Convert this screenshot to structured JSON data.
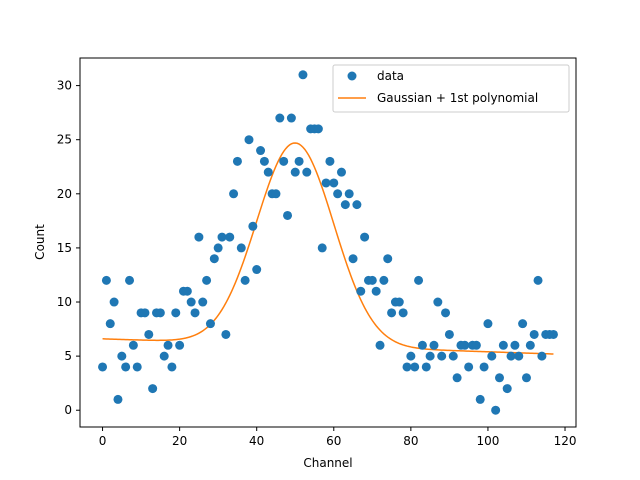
{
  "chart_data": {
    "type": "scatter",
    "xlabel": "Channel",
    "ylabel": "Count",
    "xlim": [
      -5.85,
      122.85
    ],
    "ylim": [
      -1.55,
      32.55
    ],
    "xticks": [
      0,
      20,
      40,
      60,
      80,
      100,
      120
    ],
    "yticks": [
      0,
      5,
      10,
      15,
      20,
      25,
      30
    ],
    "grid": false,
    "legend_position": "upper-right",
    "colors": {
      "data": "#1f77b4",
      "fit": "#ff7f0e"
    },
    "series": [
      {
        "name": "data",
        "kind": "scatter",
        "x": [
          0,
          1,
          2,
          3,
          4,
          5,
          6,
          7,
          8,
          9,
          10,
          11,
          12,
          13,
          14,
          15,
          16,
          17,
          18,
          19,
          20,
          21,
          22,
          23,
          24,
          25,
          26,
          27,
          28,
          29,
          30,
          31,
          32,
          33,
          34,
          35,
          36,
          37,
          38,
          39,
          40,
          41,
          42,
          43,
          44,
          45,
          46,
          47,
          48,
          49,
          50,
          51,
          52,
          53,
          54,
          55,
          56,
          57,
          58,
          59,
          60,
          61,
          62,
          63,
          64,
          65,
          66,
          67,
          68,
          69,
          70,
          71,
          72,
          73,
          74,
          75,
          76,
          77,
          78,
          79,
          80,
          81,
          82,
          83,
          84,
          85,
          86,
          87,
          88,
          89,
          90,
          91,
          92,
          93,
          94,
          95,
          96,
          97,
          98,
          99,
          100,
          101,
          102,
          103,
          104,
          105,
          106,
          107,
          108,
          109,
          110,
          111,
          112,
          113,
          114,
          115,
          116,
          117
        ],
        "y": [
          4,
          12,
          8,
          10,
          1,
          5,
          4,
          12,
          6,
          4,
          9,
          9,
          7,
          2,
          9,
          9,
          5,
          6,
          4,
          9,
          6,
          11,
          11,
          10,
          9,
          16,
          10,
          12,
          8,
          14,
          15,
          16,
          7,
          16,
          20,
          23,
          15,
          12,
          25,
          17,
          13,
          24,
          23,
          22,
          20,
          20,
          27,
          23,
          18,
          27,
          22,
          23,
          31,
          22,
          26,
          26,
          26,
          15,
          21,
          23,
          21,
          20,
          22,
          19,
          20,
          14,
          19,
          11,
          16,
          12,
          12,
          11,
          6,
          12,
          14,
          9,
          10,
          10,
          9,
          4,
          5,
          4,
          12,
          6,
          4,
          5,
          6,
          10,
          5,
          9,
          7,
          5,
          3,
          6,
          6,
          4,
          6,
          6,
          1,
          4,
          8,
          5,
          0,
          3,
          6,
          2,
          5,
          6,
          5,
          8,
          3,
          6,
          7,
          12,
          5,
          7,
          7,
          7
        ]
      },
      {
        "name": "Gaussian + 1st polynomial",
        "kind": "line",
        "model": {
          "amplitude": 18.7,
          "center": 50.0,
          "sigma": 10.0,
          "intercept": 6.6,
          "slope": -0.012
        },
        "x_range": [
          0,
          117
        ]
      }
    ]
  }
}
